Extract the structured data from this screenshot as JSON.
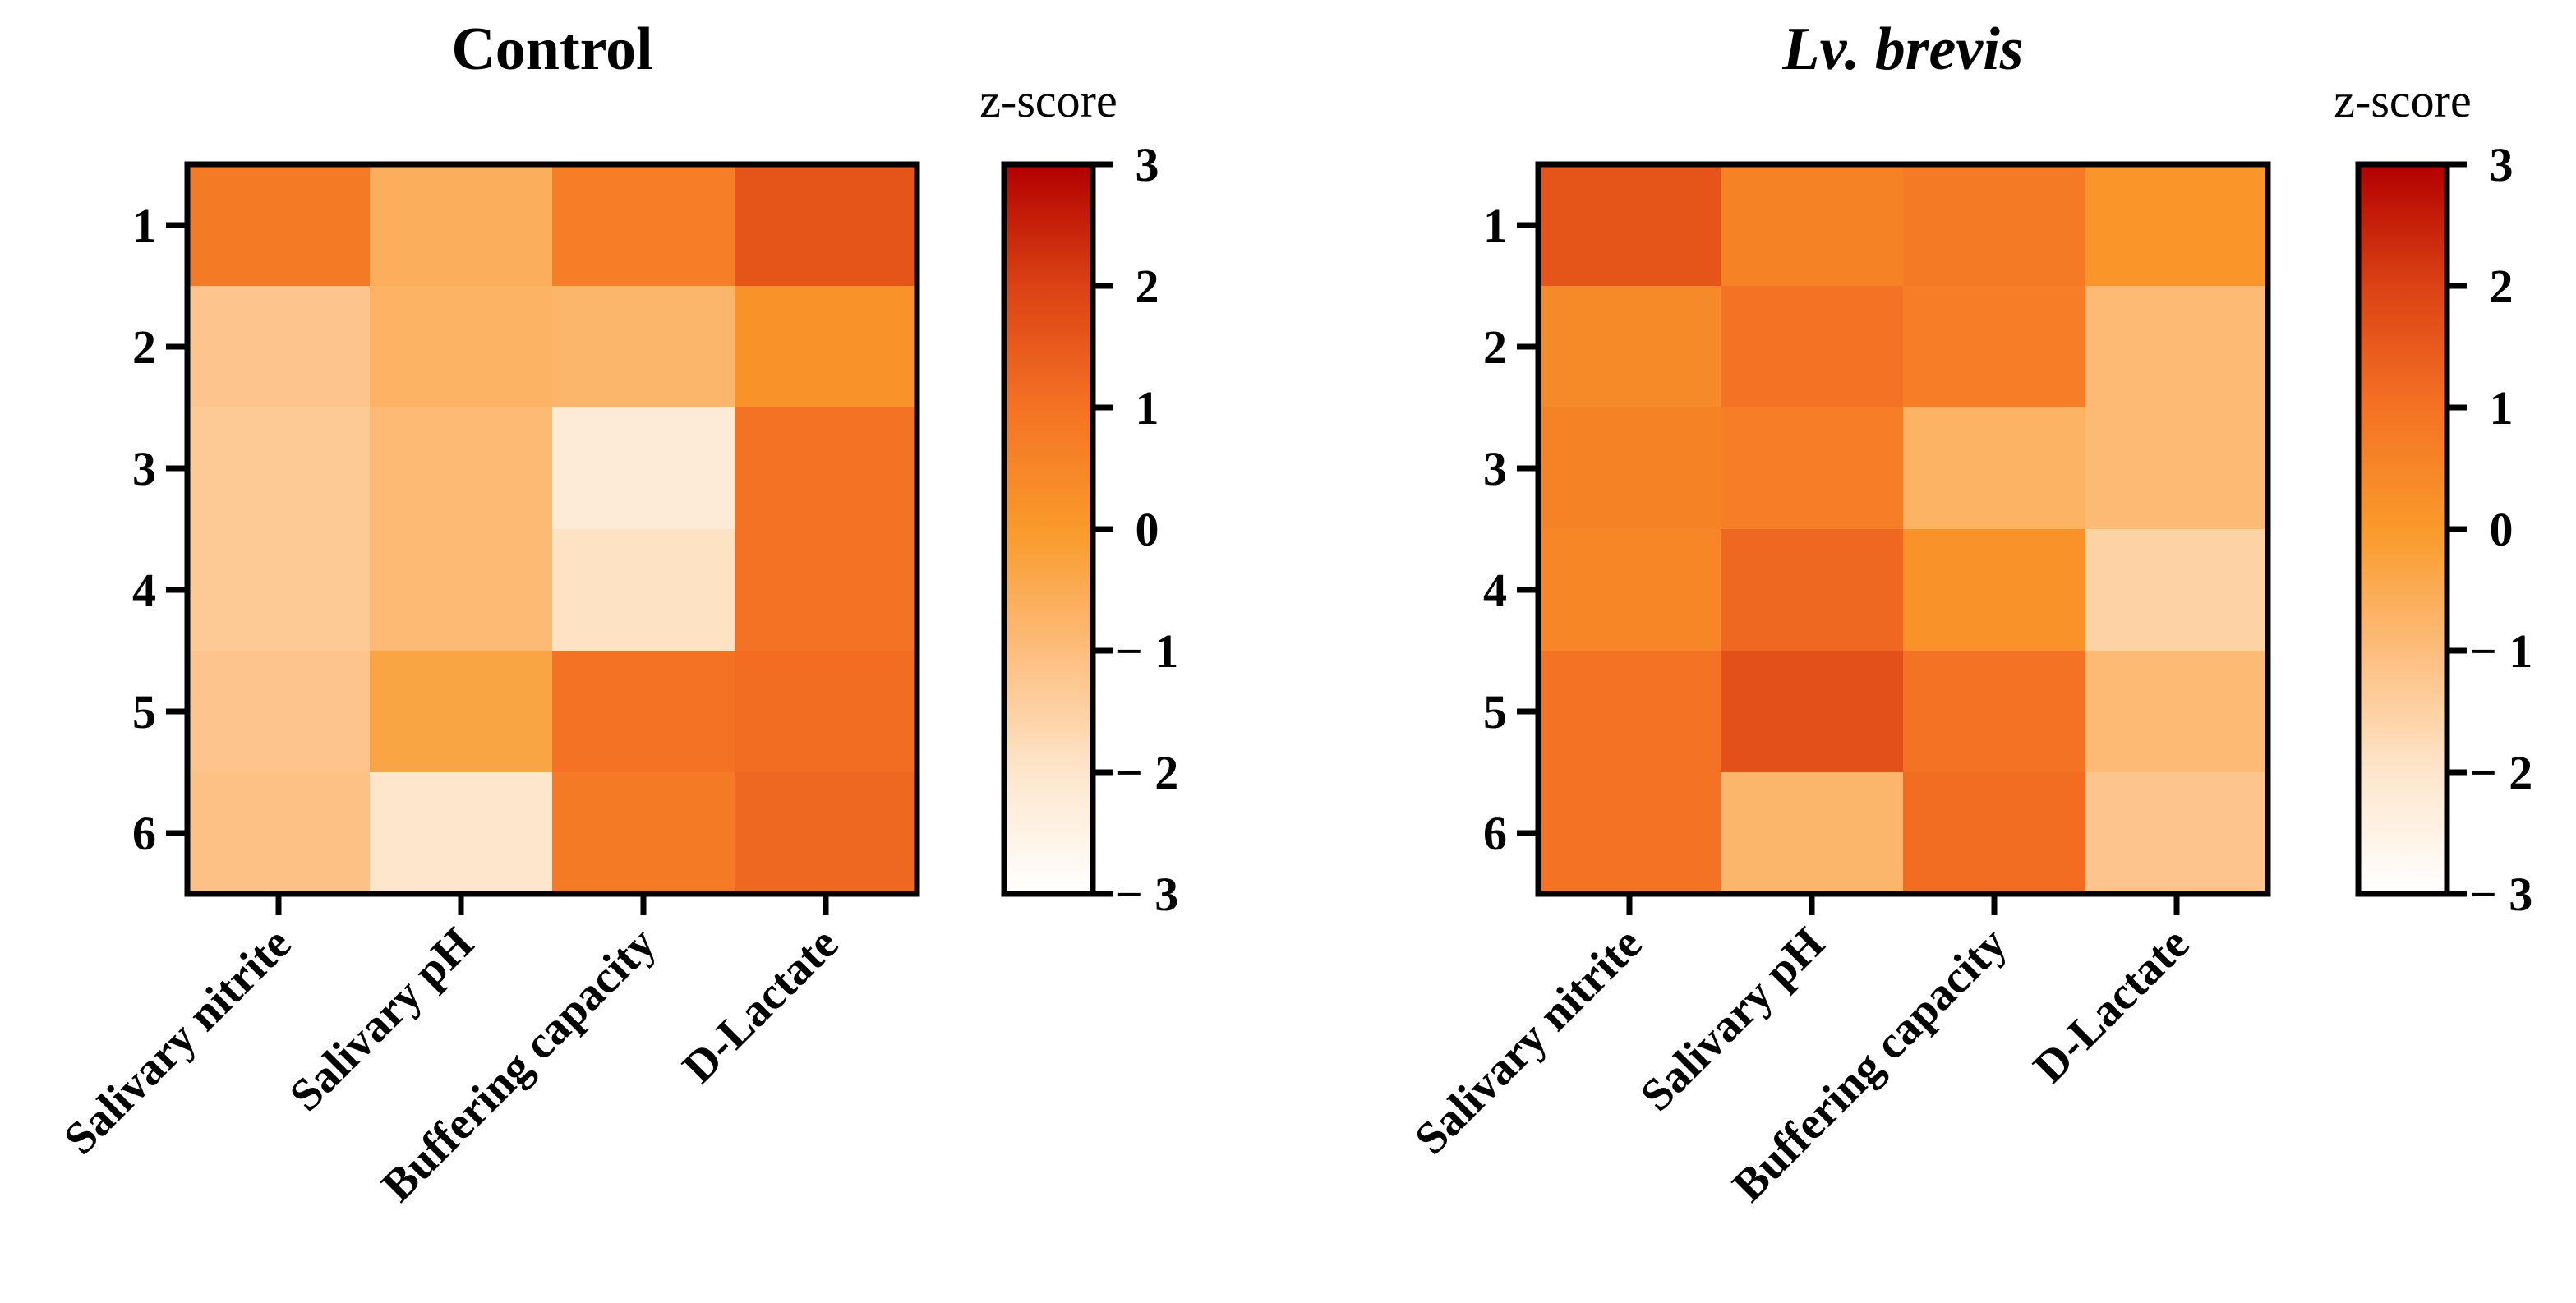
{
  "chart_data": [
    {
      "type": "heatmap",
      "title": "Control",
      "title_italic": false,
      "columns": [
        "Salivary nitrite",
        "Salivary pH",
        "Buffering capacity",
        "D-Lactate"
      ],
      "rows": [
        "1",
        "2",
        "3",
        "4",
        "5",
        "6"
      ],
      "values": [
        [
          0.8,
          -0.6,
          0.7,
          1.6
        ],
        [
          -1.2,
          -0.7,
          -0.8,
          0.2
        ],
        [
          -1.3,
          -0.9,
          -2.2,
          1.0
        ],
        [
          -1.3,
          -0.9,
          -1.9,
          1.0
        ],
        [
          -1.2,
          -0.3,
          1.0,
          1.1
        ],
        [
          -1.1,
          -2.0,
          0.8,
          1.2
        ]
      ],
      "colorbar": {
        "label": "z-score",
        "min": -3,
        "max": 3,
        "ticks": [
          "3",
          "2",
          "1",
          "0",
          "− 1",
          "− 2",
          "− 3"
        ]
      }
    },
    {
      "type": "heatmap",
      "title": "Lv. brevis",
      "title_italic": true,
      "columns": [
        "Salivary nitrite",
        "Salivary pH",
        "Buffering capacity",
        "D-Lactate"
      ],
      "rows": [
        "1",
        "2",
        "3",
        "4",
        "5",
        "6"
      ],
      "values": [
        [
          1.6,
          0.6,
          0.8,
          0.1
        ],
        [
          0.4,
          1.0,
          0.7,
          -0.9
        ],
        [
          0.6,
          0.7,
          -0.7,
          -0.9
        ],
        [
          0.5,
          1.2,
          0.2,
          -1.5
        ],
        [
          1.0,
          1.7,
          1.0,
          -0.9
        ],
        [
          1.0,
          -0.8,
          1.1,
          -1.2
        ]
      ],
      "colorbar": {
        "label": "z-score",
        "min": -3,
        "max": 3,
        "ticks": [
          "3",
          "2",
          "1",
          "0",
          "− 1",
          "− 2",
          "− 3"
        ]
      }
    }
  ],
  "colors": {
    "scale": [
      "#ffffff",
      "#fde6cc",
      "#fdbd7d",
      "#f99a2a",
      "#f47224",
      "#db4214",
      "#b20000"
    ]
  }
}
